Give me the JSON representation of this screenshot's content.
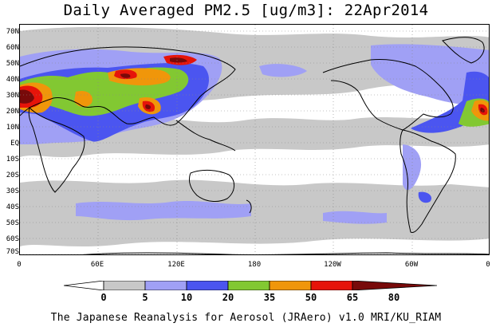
{
  "title": "Daily Averaged PM2.5 [ug/m3]: 22Apr2014",
  "lat_labels": [
    "70N",
    "60N",
    "50N",
    "40N",
    "30N",
    "20N",
    "10N",
    "EQ",
    "10S",
    "20S",
    "30S",
    "40S",
    "50S",
    "60S",
    "70S"
  ],
  "lon_labels": [
    "0",
    "60E",
    "120E",
    "180",
    "120W",
    "60W",
    "0"
  ],
  "colorbar": {
    "levels": [
      "0",
      "5",
      "10",
      "20",
      "35",
      "50",
      "65",
      "80"
    ],
    "colors": [
      "#ffffff",
      "#c8c8c8",
      "#a0a0f5",
      "#4b55f0",
      "#82c832",
      "#f0960a",
      "#e6140a",
      "#780a0a"
    ]
  },
  "footer": "The Japanese Reanalysis for Aerosol (JRAero) v1.0 MRI/KU_RIAM"
}
